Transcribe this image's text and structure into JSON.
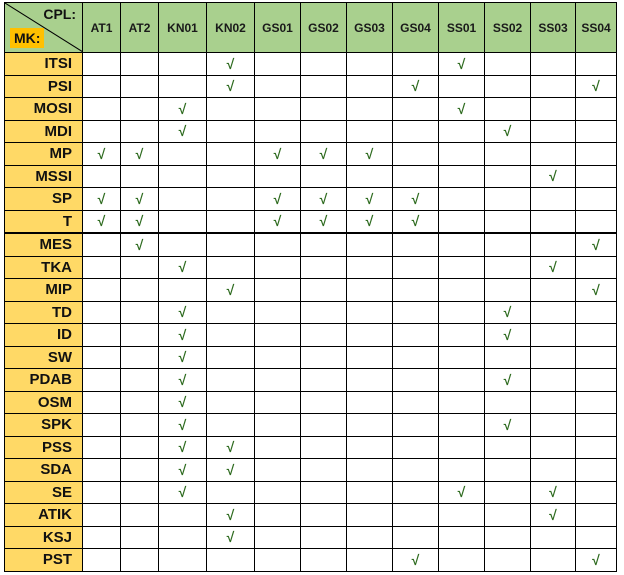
{
  "header": {
    "cpl_label": "CPL:",
    "mk_label": "MK:",
    "columns": [
      "AT1",
      "AT2",
      "KN01",
      "KN02",
      "GS01",
      "GS02",
      "GS03",
      "GS04",
      "SS01",
      "SS02",
      "SS03",
      "SS04"
    ]
  },
  "check_mark": "√",
  "separator_after_row": "T",
  "colors": {
    "header_bg": "#a9d08e",
    "row_label_bg": "#ffd966",
    "mk_bg": "#ffc000",
    "check": "#2e6b1f"
  },
  "rows": [
    {
      "label": "ITSI",
      "checks": [
        "KN02",
        "SS01"
      ]
    },
    {
      "label": "PSI",
      "checks": [
        "KN02",
        "GS04",
        "SS04"
      ]
    },
    {
      "label": "MOSI",
      "checks": [
        "KN01",
        "SS01"
      ]
    },
    {
      "label": "MDI",
      "checks": [
        "KN01",
        "SS02"
      ]
    },
    {
      "label": "MP",
      "checks": [
        "AT1",
        "AT2",
        "GS01",
        "GS02",
        "GS03"
      ]
    },
    {
      "label": "MSSI",
      "checks": [
        "SS03"
      ]
    },
    {
      "label": "SP",
      "checks": [
        "AT1",
        "AT2",
        "GS01",
        "GS02",
        "GS03",
        "GS04"
      ]
    },
    {
      "label": "T",
      "checks": [
        "AT1",
        "AT2",
        "GS01",
        "GS02",
        "GS03",
        "GS04"
      ]
    },
    {
      "label": "MES",
      "checks": [
        "AT2",
        "SS04"
      ]
    },
    {
      "label": "TKA",
      "checks": [
        "KN01",
        "SS03"
      ]
    },
    {
      "label": "MIP",
      "checks": [
        "KN02",
        "SS04"
      ]
    },
    {
      "label": "TD",
      "checks": [
        "KN01",
        "SS02"
      ]
    },
    {
      "label": "ID",
      "checks": [
        "KN01",
        "SS02"
      ]
    },
    {
      "label": "SW",
      "checks": [
        "KN01"
      ]
    },
    {
      "label": "PDAB",
      "checks": [
        "KN01",
        "SS02"
      ]
    },
    {
      "label": "OSM",
      "checks": [
        "KN01"
      ]
    },
    {
      "label": "SPK",
      "checks": [
        "KN01",
        "SS02"
      ]
    },
    {
      "label": "PSS",
      "checks": [
        "KN01",
        "KN02"
      ]
    },
    {
      "label": "SDA",
      "checks": [
        "KN01",
        "KN02"
      ]
    },
    {
      "label": "SE",
      "checks": [
        "KN01",
        "SS01",
        "SS03"
      ]
    },
    {
      "label": "ATIK",
      "checks": [
        "KN02",
        "SS03"
      ]
    },
    {
      "label": "KSJ",
      "checks": [
        "KN02"
      ]
    },
    {
      "label": "PST",
      "checks": [
        "GS04",
        "SS04"
      ]
    }
  ]
}
